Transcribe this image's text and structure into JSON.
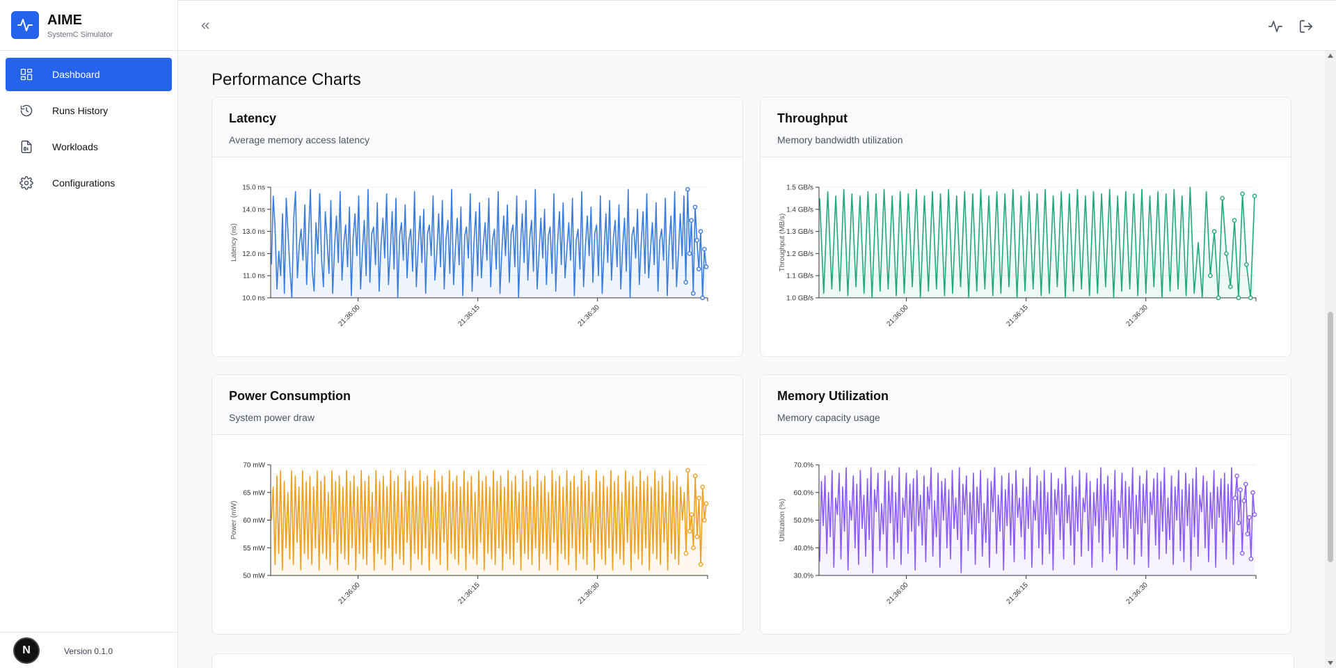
{
  "app": {
    "title": "AIME",
    "subtitle": "SystemC Simulator",
    "version": "Version 0.1.0",
    "avatar_letter": "N"
  },
  "sidebar": {
    "items": [
      {
        "label": "Dashboard",
        "icon": "dashboard-icon",
        "active": true
      },
      {
        "label": "Runs History",
        "icon": "history-icon",
        "active": false
      },
      {
        "label": "Workloads",
        "icon": "file-code-icon",
        "active": false
      },
      {
        "label": "Configurations",
        "icon": "gear-icon",
        "active": false
      }
    ]
  },
  "topbar": {
    "icons": [
      "collapse-icon",
      "activity-icon",
      "logout-icon"
    ]
  },
  "main": {
    "section_title": "Performance Charts",
    "cards": [
      {
        "title": "Latency",
        "description": "Average memory access latency"
      },
      {
        "title": "Throughput",
        "description": "Memory bandwidth utilization"
      },
      {
        "title": "Power Consumption",
        "description": "System power draw"
      },
      {
        "title": "Memory Utilization",
        "description": "Memory capacity usage"
      }
    ]
  },
  "chart_data": [
    {
      "type": "line",
      "ylabel": "Latency (ns)",
      "ylim": [
        10,
        15
      ],
      "yticks": [
        10,
        11,
        12,
        13,
        14,
        15
      ],
      "ytick_labels": [
        "10.0 ns",
        "11.0 ns",
        "12.0 ns",
        "13.0 ns",
        "14.0 ns",
        "15.0 ns"
      ],
      "xtick_labels": [
        "21:36:00",
        "21:36:15",
        "21:36:30"
      ],
      "grid": true,
      "color": "#3b7ddd",
      "series": [
        {
          "values": [
            11.5,
            14.6,
            13.2,
            10.4,
            12.1,
            11.0,
            13.8,
            10.2,
            14.5,
            12.9,
            11.3,
            10.0,
            13.6,
            14.8,
            10.9,
            12.4,
            13.1,
            11.7,
            14.2,
            10.6,
            12.8,
            14.9,
            11.2,
            10.3,
            13.4,
            12.0,
            14.7,
            11.8,
            10.5,
            13.9,
            12.6,
            11.1,
            14.4,
            10.2,
            12.3,
            13.7,
            11.6,
            14.8,
            10.8,
            12.5,
            13.3,
            11.4,
            14.1,
            10.1,
            12.7,
            13.8,
            11.9,
            14.6,
            10.4,
            12.2,
            13.5,
            11.0,
            14.9,
            10.7,
            12.9,
            13.2,
            11.5,
            14.3,
            10.3,
            12.4,
            13.6,
            11.8,
            14.7,
            10.6,
            12.1,
            13.9,
            11.3,
            14.5,
            10.0,
            12.8,
            13.4,
            11.7,
            14.2,
            10.9,
            12.6,
            13.1,
            11.2,
            14.8,
            10.5,
            12.3,
            13.7,
            11.6,
            14.0,
            10.2,
            12.9,
            13.3,
            11.9,
            14.6,
            10.8,
            12.0,
            13.8,
            11.4,
            14.4,
            10.4,
            12.7,
            13.5,
            11.1,
            14.9,
            10.6,
            12.2,
            13.6,
            11.5,
            14.1,
            10.1,
            12.8,
            13.2,
            11.8,
            14.7,
            10.3,
            12.5,
            13.9,
            11.0,
            14.3,
            10.9,
            12.4,
            13.4,
            11.7,
            14.5,
            10.5,
            12.6,
            13.1,
            11.3,
            14.8,
            10.2,
            12.1,
            13.7,
            11.9,
            14.2,
            10.7,
            12.9,
            13.3,
            11.4,
            14.6,
            10.0,
            12.3,
            13.8,
            11.6,
            14.4,
            10.8,
            12.7,
            13.5,
            11.2,
            14.9,
            10.4,
            12.0,
            13.6,
            11.8,
            14.0,
            10.6,
            12.8,
            13.2,
            11.1,
            14.7,
            10.3,
            12.5,
            13.9,
            11.5,
            14.3,
            10.9,
            12.2,
            13.4,
            11.7,
            14.5,
            10.1,
            12.6,
            13.1,
            11.3,
            14.8,
            10.5,
            12.4,
            13.7,
            11.9,
            14.1,
            10.7,
            12.9,
            13.3,
            11.0,
            14.6,
            10.2,
            12.1,
            13.8,
            11.6,
            14.4,
            10.8,
            12.7,
            13.5,
            11.4,
            14.2,
            10.4,
            12.3,
            13.6,
            11.2,
            14.9,
            10.0,
            12.8,
            13.2,
            11.8,
            14.0,
            10.6,
            12.5,
            13.9,
            11.1,
            14.7,
            10.9,
            12.2,
            13.4,
            11.5,
            14.3,
            10.3,
            12.6,
            13.1,
            11.7,
            14.5,
            10.1,
            12.4,
            13.7,
            11.3,
            14.8,
            10.5,
            12.0,
            13.8,
            11.9,
            14.6,
            10.7,
            14.9,
            12.0,
            13.5,
            10.2,
            14.1,
            12.6,
            11.3,
            13.0,
            10.0,
            12.2,
            11.4
          ]
        }
      ]
    },
    {
      "type": "line",
      "ylabel": "Throughput (MB/s)",
      "ylim": [
        1.0,
        1.5
      ],
      "yticks": [
        1.0,
        1.1,
        1.2,
        1.3,
        1.4,
        1.5
      ],
      "ytick_labels": [
        "1.0 GB/s",
        "1.1 GB/s",
        "1.2 GB/s",
        "1.3 GB/s",
        "1.4 GB/s",
        "1.5 GB/s"
      ],
      "xtick_labels": [
        "21:36:00",
        "21:36:15",
        "21:36:30"
      ],
      "grid": true,
      "color": "#22a979",
      "series": [
        {
          "values": [
            1.45,
            1.02,
            1.48,
            1.04,
            1.46,
            1.03,
            1.49,
            1.01,
            1.47,
            1.05,
            1.46,
            1.02,
            1.48,
            1.0,
            1.47,
            1.03,
            1.49,
            1.04,
            1.46,
            1.01,
            1.48,
            1.02,
            1.47,
            1.05,
            1.49,
            1.0,
            1.46,
            1.03,
            1.48,
            1.04,
            1.47,
            1.01,
            1.49,
            1.02,
            1.46,
            1.05,
            1.48,
            1.0,
            1.47,
            1.03,
            1.49,
            1.04,
            1.46,
            1.01,
            1.48,
            1.02,
            1.47,
            1.05,
            1.49,
            1.0,
            1.46,
            1.03,
            1.48,
            1.04,
            1.47,
            1.01,
            1.49,
            1.02,
            1.46,
            1.05,
            1.48,
            1.0,
            1.47,
            1.03,
            1.49,
            1.04,
            1.46,
            1.01,
            1.48,
            1.02,
            1.47,
            1.05,
            1.49,
            1.0,
            1.46,
            1.03,
            1.48,
            1.04,
            1.47,
            1.01,
            1.49,
            1.02,
            1.46,
            1.05,
            1.48,
            1.0,
            1.47,
            1.03,
            1.49,
            1.04,
            1.46,
            1.01,
            1.5,
            1.02,
            1.25,
            1.0,
            1.48,
            1.1,
            1.3,
            1.0,
            1.45,
            1.2,
            1.05,
            1.35,
            1.0,
            1.47,
            1.15,
            1.0,
            1.46
          ]
        }
      ]
    },
    {
      "type": "line",
      "ylabel": "Power (mW)",
      "ylim": [
        50,
        70
      ],
      "yticks": [
        50,
        55,
        60,
        65,
        70
      ],
      "ytick_labels": [
        "50 mW",
        "55 mW",
        "60 mW",
        "65 mW",
        "70 mW"
      ],
      "xtick_labels": [
        "21:36:00",
        "21:36:15",
        "21:36:30"
      ],
      "grid": true,
      "color": "#f0a020",
      "series": [
        {
          "values": [
            60,
            66,
            52,
            68,
            54,
            69,
            51,
            67,
            55,
            65,
            53,
            69,
            52,
            68,
            56,
            66,
            51,
            69,
            54,
            67,
            53,
            68,
            52,
            66,
            55,
            69,
            51,
            67,
            54,
            68,
            53,
            65,
            52,
            69,
            56,
            67,
            51,
            68,
            54,
            66,
            53,
            69,
            52,
            67,
            55,
            68,
            51,
            66,
            54,
            69,
            53,
            67,
            52,
            68,
            56,
            65,
            51,
            69,
            54,
            67,
            53,
            68,
            52,
            66,
            55,
            69,
            51,
            67,
            54,
            68,
            53,
            65,
            52,
            69,
            56,
            67,
            51,
            68,
            54,
            66,
            53,
            69,
            52,
            67,
            55,
            68,
            51,
            66,
            54,
            69,
            53,
            67,
            52,
            68,
            56,
            65,
            51,
            69,
            54,
            67,
            53,
            68,
            52,
            66,
            55,
            69,
            51,
            67,
            54,
            68,
            53,
            65,
            52,
            69,
            56,
            67,
            51,
            68,
            54,
            66,
            53,
            69,
            52,
            67,
            55,
            68,
            51,
            66,
            54,
            69,
            53,
            67,
            52,
            68,
            56,
            65,
            51,
            69,
            54,
            67,
            53,
            68,
            52,
            66,
            55,
            69,
            51,
            67,
            54,
            68,
            53,
            65,
            52,
            69,
            56,
            67,
            51,
            68,
            54,
            66,
            53,
            69,
            52,
            67,
            55,
            68,
            51,
            66,
            54,
            69,
            53,
            67,
            52,
            68,
            56,
            65,
            51,
            69,
            54,
            67,
            53,
            68,
            52,
            66,
            55,
            69,
            51,
            67,
            54,
            68,
            53,
            65,
            52,
            69,
            56,
            67,
            51,
            68,
            54,
            66,
            53,
            69,
            52,
            67,
            55,
            68,
            51,
            66,
            54,
            69,
            53,
            67,
            52,
            68,
            56,
            65,
            51,
            69,
            54,
            67,
            53,
            68,
            52,
            66,
            60,
            65,
            54,
            69,
            58,
            61,
            55,
            68,
            57,
            64,
            52,
            66,
            60,
            63
          ]
        }
      ]
    },
    {
      "type": "line",
      "ylabel": "Utilization (%)",
      "ylim": [
        30,
        70
      ],
      "yticks": [
        30,
        40,
        50,
        60,
        70
      ],
      "ytick_labels": [
        "30.0%",
        "40.0%",
        "50.0%",
        "60.0%",
        "70.0%"
      ],
      "xtick_labels": [
        "21:36:00",
        "21:36:15",
        "21:36:30"
      ],
      "grid": true,
      "color": "#8b5cf6",
      "series": [
        {
          "values": [
            35,
            64,
            48,
            66,
            38,
            60,
            44,
            68,
            33,
            58,
            52,
            67,
            36,
            62,
            46,
            69,
            32,
            57,
            50,
            66,
            40,
            63,
            34,
            68,
            47,
            59,
            37,
            65,
            43,
            69,
            31,
            61,
            53,
            67,
            39,
            56,
            45,
            68,
            33,
            64,
            49,
            66,
            36,
            60,
            42,
            69,
            34,
            58,
            51,
            67,
            38,
            63,
            46,
            65,
            32,
            68,
            48,
            59,
            41,
            66,
            35,
            62,
            54,
            69,
            37,
            57,
            44,
            67,
            33,
            64,
            50,
            65,
            40,
            61,
            36,
            68,
            47,
            58,
            43,
            69,
            31,
            63,
            52,
            66,
            39,
            60,
            45,
            67,
            34,
            62,
            49,
            68,
            37,
            56,
            42,
            65,
            33,
            64,
            53,
            69,
            38,
            59,
            46,
            66,
            32,
            61,
            48,
            67,
            41,
            63,
            35,
            68,
            51,
            58,
            44,
            65,
            36,
            62,
            47,
            69,
            33,
            57,
            50,
            66,
            40,
            64,
            34,
            68,
            45,
            60,
            38,
            67,
            32,
            61,
            52,
            65,
            43,
            63,
            36,
            69,
            49,
            59,
            41,
            66,
            34,
            62,
            46,
            68,
            37,
            58,
            53,
            67,
            39,
            64,
            33,
            60,
            48,
            65,
            42,
            69,
            35,
            63,
            50,
            66,
            38,
            61,
            44,
            68,
            32,
            57,
            51,
            67,
            40,
            64,
            36,
            62,
            47,
            69,
            34,
            59,
            45,
            66,
            37,
            63,
            49,
            68,
            33,
            60,
            52,
            65,
            41,
            67,
            36,
            64,
            46,
            69,
            38,
            58,
            43,
            66,
            34,
            62,
            50,
            68,
            39,
            61,
            35,
            67,
            48,
            63,
            32,
            65,
            44,
            69,
            37,
            59,
            53,
            66,
            40,
            64,
            35,
            60,
            47,
            68,
            33,
            62,
            51,
            65,
            42,
            67,
            36,
            63,
            46,
            69,
            34,
            58,
            66,
            49,
            61,
            38,
            57,
            63,
            45,
            51,
            36,
            60,
            52
          ]
        }
      ]
    }
  ]
}
